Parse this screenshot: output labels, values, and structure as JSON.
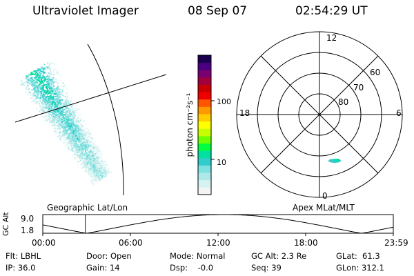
{
  "header": {
    "instrument": "Ultraviolet Imager",
    "date": "08 Sep 07",
    "time": "02:54:29 UT"
  },
  "left_panel": {
    "label": "Geographic Lat/Lon"
  },
  "right_panel": {
    "label": "Apex MLat/MLT",
    "mlt_labels": {
      "top": "12",
      "left": "18",
      "right": "6",
      "bottom": "0"
    },
    "lat_labels": [
      "60",
      "70",
      "80"
    ]
  },
  "colorbar": {
    "title": "photon cm⁻²s⁻¹",
    "ticks": [
      {
        "value": 100,
        "label": "100"
      },
      {
        "value": 10,
        "label": "10"
      }
    ],
    "range": [
      2.5,
      600
    ],
    "scale": "log",
    "colors": [
      "#f4f4f4",
      "#d6f2f2",
      "#aee8e8",
      "#7fe0e0",
      "#33cccc",
      "#00e0a0",
      "#00ff40",
      "#70ff00",
      "#c8ff00",
      "#ffff00",
      "#ffcc00",
      "#ff9900",
      "#ff5500",
      "#ee0000",
      "#c80000",
      "#a0003c",
      "#780070",
      "#4a0080",
      "#1c0050"
    ]
  },
  "timeline": {
    "axis_label": "GC Alt",
    "y_ticks": [
      "9.0",
      "1.8"
    ],
    "y_range": [
      1.8,
      9.0
    ],
    "x_ticks": [
      "00:00",
      "06:00",
      "12:00",
      "18:00",
      "23:59"
    ],
    "current_time_hours": 2.908,
    "marker_color": "#cc0000"
  },
  "info": {
    "flt": "Flt: LBHL",
    "ip": "IP: 36.0",
    "door": "Door: Open",
    "gain": "Gain: 14",
    "mode": "Mode: Normal",
    "dsp": "Dsp:    -0.0",
    "gcalt": "GC Alt: 2.3 Re",
    "seq": "Seq: 39",
    "glat": "GLat:  61.3",
    "glon": "GLon: 312.1"
  }
}
